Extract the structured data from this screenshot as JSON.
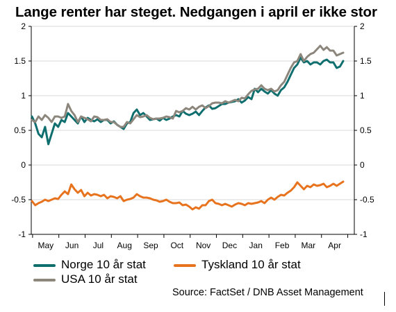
{
  "chart_data": {
    "type": "line",
    "title": "Lange renter har steget. Nedgangen i april er ikke stor",
    "ylim": [
      -1,
      2
    ],
    "y_ticks": [
      "2",
      "1.5",
      "1",
      "0.5",
      "0",
      "-0.5",
      "-1"
    ],
    "y_tick_values": [
      2,
      1.5,
      1,
      0.5,
      0,
      -0.5,
      -1
    ],
    "x_tick_labels": [
      "May",
      "Jun",
      "Jul",
      "Aug",
      "Sep",
      "Oct",
      "Nov",
      "Dec",
      "Jan",
      "Feb",
      "Mar",
      "Apr"
    ],
    "grid": true,
    "legend_position": "bottom",
    "colors": {
      "norge": "#0f6e6e",
      "usa": "#8c867c",
      "tyskland": "#e8731e",
      "grid": "#d9d9d9"
    },
    "x_dates": [
      "Apr 20",
      "Apr 22",
      "Apr 24",
      "Apr 26",
      "Apr 28",
      "May 1",
      "May 3",
      "May 6",
      "May 9",
      "May 13",
      "May 16",
      "May 20",
      "May 24",
      "May 28",
      "Jun 1",
      "Jun 5",
      "Jun 9",
      "Jun 13",
      "Jun 17",
      "Jun 21",
      "Jun 25",
      "Jun 29",
      "Jul 3",
      "Jul 7",
      "Jul 11",
      "Jul 15",
      "Jul 19",
      "Jul 23",
      "Jul 27",
      "Jul 31",
      "Aug 4",
      "Aug 8",
      "Aug 12",
      "Aug 16",
      "Aug 20",
      "Aug 24",
      "Aug 28",
      "Sep 1",
      "Sep 5",
      "Sep 9",
      "Sep 13",
      "Sep 17",
      "Sep 21",
      "Sep 25",
      "Sep 29",
      "Oct 3",
      "Oct 7",
      "Oct 11",
      "Oct 15",
      "Oct 19",
      "Oct 23",
      "Oct 27",
      "Oct 31",
      "Nov 4",
      "Nov 8",
      "Nov 12",
      "Nov 16",
      "Nov 20",
      "Nov 24",
      "Nov 28",
      "Dec 2",
      "Dec 6",
      "Dec 10",
      "Dec 14",
      "Dec 18",
      "Dec 22",
      "Dec 26",
      "Dec 30",
      "Jan 3",
      "Jan 7",
      "Jan 11",
      "Jan 15",
      "Jan 19",
      "Jan 23",
      "Jan 27",
      "Jan 31",
      "Feb 4",
      "Feb 8",
      "Feb 12",
      "Feb 16",
      "Feb 20",
      "Feb 24",
      "Feb 28",
      "Mar 4",
      "Mar 8",
      "Mar 12",
      "Mar 16",
      "Mar 20",
      "Mar 24",
      "Mar 28",
      "Apr 1",
      "Apr 5",
      "Apr 9",
      "Apr 13",
      "Apr 16",
      "Apr 19"
    ],
    "series": [
      {
        "name": "Norge 10 år stat",
        "values": [
          0.7,
          0.6,
          0.45,
          0.4,
          0.55,
          0.3,
          0.45,
          0.6,
          0.55,
          0.65,
          0.62,
          0.75,
          0.7,
          0.65,
          0.6,
          0.7,
          0.62,
          0.68,
          0.65,
          0.63,
          0.66,
          0.62,
          0.65,
          0.65,
          0.6,
          0.63,
          0.58,
          0.55,
          0.52,
          0.6,
          0.62,
          0.75,
          0.8,
          0.72,
          0.75,
          0.7,
          0.65,
          0.66,
          0.67,
          0.64,
          0.68,
          0.65,
          0.67,
          0.7,
          0.72,
          0.7,
          0.78,
          0.74,
          0.72,
          0.74,
          0.77,
          0.72,
          0.78,
          0.83,
          0.86,
          0.81,
          0.82,
          0.85,
          0.88,
          0.88,
          0.9,
          0.91,
          0.92,
          0.95,
          0.9,
          0.93,
          0.98,
          0.95,
          1.1,
          1.05,
          1.1,
          1.06,
          1.03,
          1.08,
          1.03,
          1.0,
          1.08,
          1.12,
          1.2,
          1.3,
          1.4,
          1.45,
          1.55,
          1.48,
          1.5,
          1.45,
          1.48,
          1.48,
          1.45,
          1.5,
          1.52,
          1.48,
          1.48,
          1.4,
          1.42,
          1.5
        ]
      },
      {
        "name": "USA 10 år stat",
        "values": [
          0.65,
          0.62,
          0.7,
          0.65,
          0.72,
          0.68,
          0.62,
          0.7,
          0.7,
          0.68,
          0.7,
          0.88,
          0.78,
          0.72,
          0.62,
          0.7,
          0.68,
          0.66,
          0.63,
          0.7,
          0.69,
          0.65,
          0.65,
          0.66,
          0.62,
          0.62,
          0.58,
          0.55,
          0.55,
          0.62,
          0.6,
          0.66,
          0.72,
          0.69,
          0.7,
          0.72,
          0.68,
          0.66,
          0.67,
          0.67,
          0.68,
          0.7,
          0.69,
          0.67,
          0.78,
          0.76,
          0.78,
          0.82,
          0.8,
          0.84,
          0.8,
          0.84,
          0.86,
          0.82,
          0.85,
          0.89,
          0.9,
          0.9,
          0.89,
          0.92,
          0.9,
          0.92,
          0.94,
          0.92,
          0.97,
          0.96,
          1.02,
          1.07,
          1.09,
          1.1,
          1.15,
          1.1,
          1.08,
          1.1,
          1.06,
          1.08,
          1.15,
          1.2,
          1.3,
          1.4,
          1.48,
          1.5,
          1.6,
          1.5,
          1.56,
          1.6,
          1.62,
          1.67,
          1.72,
          1.66,
          1.7,
          1.65,
          1.65,
          1.58,
          1.6,
          1.62
        ]
      },
      {
        "name": "Tyskland 10 år stat",
        "values": [
          -0.52,
          -0.58,
          -0.55,
          -0.53,
          -0.5,
          -0.52,
          -0.5,
          -0.48,
          -0.49,
          -0.43,
          -0.38,
          -0.42,
          -0.28,
          -0.35,
          -0.4,
          -0.36,
          -0.45,
          -0.4,
          -0.44,
          -0.42,
          -0.43,
          -0.45,
          -0.43,
          -0.48,
          -0.45,
          -0.46,
          -0.48,
          -0.45,
          -0.52,
          -0.5,
          -0.49,
          -0.47,
          -0.42,
          -0.45,
          -0.47,
          -0.47,
          -0.48,
          -0.5,
          -0.51,
          -0.53,
          -0.52,
          -0.5,
          -0.53,
          -0.55,
          -0.55,
          -0.54,
          -0.58,
          -0.57,
          -0.6,
          -0.64,
          -0.61,
          -0.63,
          -0.58,
          -0.58,
          -0.52,
          -0.5,
          -0.55,
          -0.56,
          -0.58,
          -0.56,
          -0.58,
          -0.6,
          -0.57,
          -0.55,
          -0.56,
          -0.58,
          -0.55,
          -0.56,
          -0.55,
          -0.54,
          -0.52,
          -0.55,
          -0.5,
          -0.47,
          -0.5,
          -0.46,
          -0.43,
          -0.44,
          -0.4,
          -0.37,
          -0.32,
          -0.25,
          -0.3,
          -0.35,
          -0.3,
          -0.32,
          -0.28,
          -0.3,
          -0.29,
          -0.27,
          -0.32,
          -0.3,
          -0.27,
          -0.3,
          -0.27,
          -0.24
        ]
      }
    ]
  },
  "legend": {
    "norge": "Norge 10 år stat",
    "tyskland": "Tyskland 10 år stat",
    "usa": "USA 10 år stat"
  },
  "source": "Source: FactSet / DNB Asset Management"
}
